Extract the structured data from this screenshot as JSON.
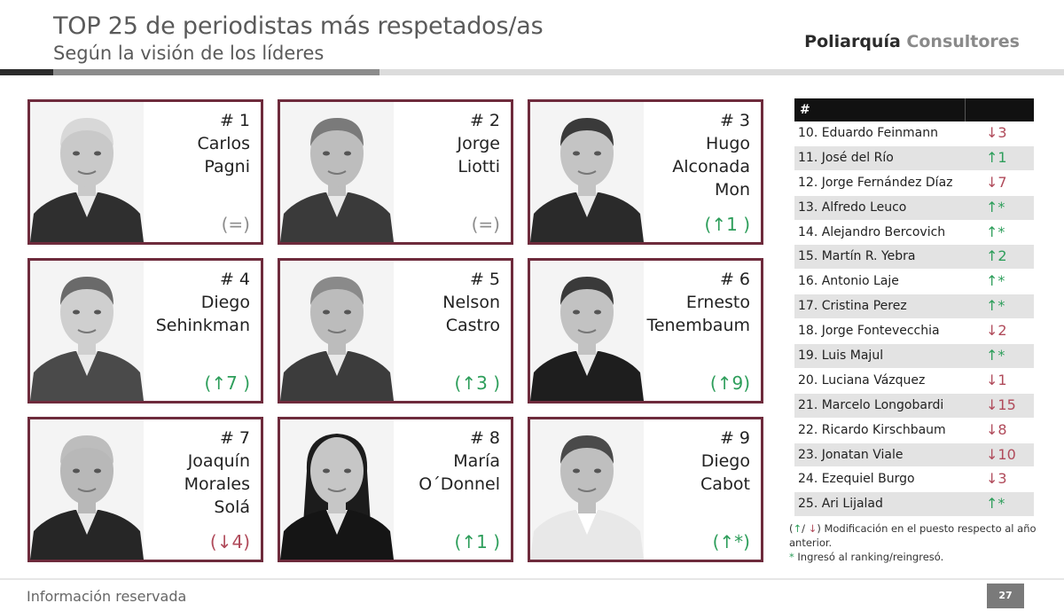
{
  "header": {
    "title": "TOP 25 de periodistas más respetados/as",
    "subtitle": "Según la visión de los líderes",
    "brand_part1": "Poliarquía",
    "brand_part2": "Consultores"
  },
  "colors": {
    "card_border": "#6e2b3c",
    "up": "#2e9e5b",
    "down": "#b04a5a",
    "equal": "#8c8c8c"
  },
  "cards": [
    {
      "rank": "# 1",
      "line1": "Carlos",
      "line2": "Pagni",
      "line3": "",
      "change": "(=)",
      "dir": "eq"
    },
    {
      "rank": "# 2",
      "line1": "Jorge",
      "line2": "Liotti",
      "line3": "",
      "change": "(=)",
      "dir": "eq"
    },
    {
      "rank": "# 3",
      "line1": "Hugo",
      "line2": "Alconada",
      "line3": "Mon",
      "change": "(↑1 )",
      "dir": "up"
    },
    {
      "rank": "# 4",
      "line1": "Diego",
      "line2": "Sehinkman",
      "line3": "",
      "change": "(↑7 )",
      "dir": "up"
    },
    {
      "rank": "# 5",
      "line1": "Nelson",
      "line2": "Castro",
      "line3": "",
      "change": "(↑3 )",
      "dir": "up"
    },
    {
      "rank": "# 6",
      "line1": "Ernesto",
      "line2": "Tenembaum",
      "line3": "",
      "change": "(↑9)",
      "dir": "up"
    },
    {
      "rank": "# 7",
      "line1": "Joaquín",
      "line2": "Morales",
      "line3": "Solá",
      "change": "(↓4)",
      "dir": "down"
    },
    {
      "rank": "# 8",
      "line1": "María",
      "line2": "O´Donnel",
      "line3": "",
      "change": "(↑1 )",
      "dir": "up"
    },
    {
      "rank": "# 9",
      "line1": "Diego",
      "line2": "Cabot",
      "line3": "",
      "change": "(↑*)",
      "dir": "up"
    }
  ],
  "table": {
    "header": "#",
    "rows": [
      {
        "name": "10. Eduardo Feinmann",
        "change": "↓3",
        "dir": "down"
      },
      {
        "name": "11. José del Río",
        "change": "↑1",
        "dir": "up"
      },
      {
        "name": "12. Jorge Fernández Díaz",
        "change": "↓7",
        "dir": "down"
      },
      {
        "name": "13. Alfredo Leuco",
        "change": "↑*",
        "dir": "up"
      },
      {
        "name": "14. Alejandro Bercovich",
        "change": "↑*",
        "dir": "up"
      },
      {
        "name": "15. Martín R. Yebra",
        "change": "↑2",
        "dir": "up"
      },
      {
        "name": "16. Antonio Laje",
        "change": "↑*",
        "dir": "up"
      },
      {
        "name": "17. Cristina Perez",
        "change": "↑*",
        "dir": "up"
      },
      {
        "name": "18. Jorge Fontevecchia",
        "change": "↓2",
        "dir": "down"
      },
      {
        "name": "19. Luis Majul",
        "change": "↑*",
        "dir": "up"
      },
      {
        "name": "20. Luciana Vázquez",
        "change": "↓1",
        "dir": "down"
      },
      {
        "name": "21. Marcelo Longobardi",
        "change": "↓15",
        "dir": "down"
      },
      {
        "name": "22. Ricardo Kirschbaum",
        "change": "↓8",
        "dir": "down"
      },
      {
        "name": "23. Jonatan Viale",
        "change": "↓10",
        "dir": "down"
      },
      {
        "name": "24. Ezequiel Burgo",
        "change": "↓3",
        "dir": "down"
      },
      {
        "name": "25. Ari Lijalad",
        "change": "↑*",
        "dir": "up"
      }
    ]
  },
  "legend": {
    "open": "(",
    "up_arrow": "↑",
    "slash": "/ ",
    "down_arrow": "↓",
    "line1_rest": ") Modificación en el puesto respecto al año anterior.",
    "asterisk": "*",
    "line2_rest": " Ingresó al ranking/reingresó."
  },
  "footer": {
    "text": "Información reservada",
    "page": "27"
  }
}
